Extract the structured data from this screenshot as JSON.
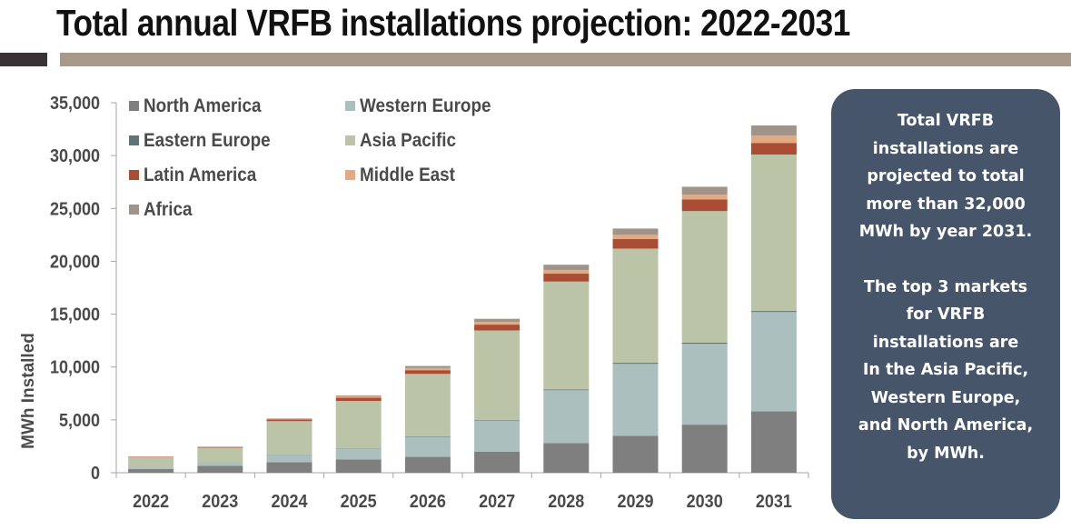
{
  "header": {
    "title": "Total annual VRFB installations projection: 2022-2031"
  },
  "callout": {
    "paragraph1": [
      "Total VRFB",
      "installations are",
      "projected to total",
      "more than 32,000",
      "MWh by year 2031."
    ],
    "paragraph2": [
      "The top 3 markets",
      "for VRFB",
      "installations are",
      "In the Asia Pacific,",
      "Western Europe,",
      "and North America,",
      "by MWh."
    ]
  },
  "chart_data": {
    "type": "bar",
    "stacked": true,
    "title": "Total annual VRFB installations projection: 2022-2031",
    "xlabel": "",
    "ylabel": "MWh Installed",
    "ylim": [
      0,
      35000
    ],
    "yticks": [
      0,
      5000,
      10000,
      15000,
      20000,
      25000,
      30000,
      35000
    ],
    "ytick_labels": [
      "0",
      "5,000",
      "10,000",
      "15,000",
      "20,000",
      "25,000",
      "30,000",
      "35,000"
    ],
    "grid": false,
    "legend_position": "top-left",
    "categories": [
      "2022",
      "2023",
      "2024",
      "2025",
      "2026",
      "2027",
      "2028",
      "2029",
      "2030",
      "2031"
    ],
    "series": [
      {
        "name": "North America",
        "color": "#7f7f7f",
        "values": [
          350,
          650,
          1000,
          1250,
          1500,
          2000,
          2800,
          3500,
          4550,
          5800
        ]
      },
      {
        "name": "Western Europe",
        "color": "#aabfbe",
        "values": [
          150,
          300,
          700,
          1050,
          1900,
          2900,
          5000,
          6800,
          7650,
          9400
        ]
      },
      {
        "name": "Eastern Europe",
        "color": "#5f7478",
        "values": [
          10,
          20,
          30,
          40,
          50,
          60,
          80,
          100,
          100,
          100
        ]
      },
      {
        "name": "Asia Pacific",
        "color": "#bcc4a8",
        "values": [
          950,
          1400,
          3150,
          4450,
          5900,
          8500,
          10200,
          10800,
          12450,
          14800
        ]
      },
      {
        "name": "Latin America",
        "color": "#a94e35",
        "values": [
          40,
          60,
          150,
          300,
          350,
          550,
          750,
          900,
          1100,
          1100
        ]
      },
      {
        "name": "Middle East",
        "color": "#e3a983",
        "values": [
          20,
          40,
          80,
          150,
          200,
          250,
          350,
          400,
          450,
          700
        ]
      },
      {
        "name": "Africa",
        "color": "#a09489",
        "values": [
          5,
          10,
          30,
          80,
          200,
          300,
          500,
          600,
          750,
          950
        ]
      }
    ]
  }
}
